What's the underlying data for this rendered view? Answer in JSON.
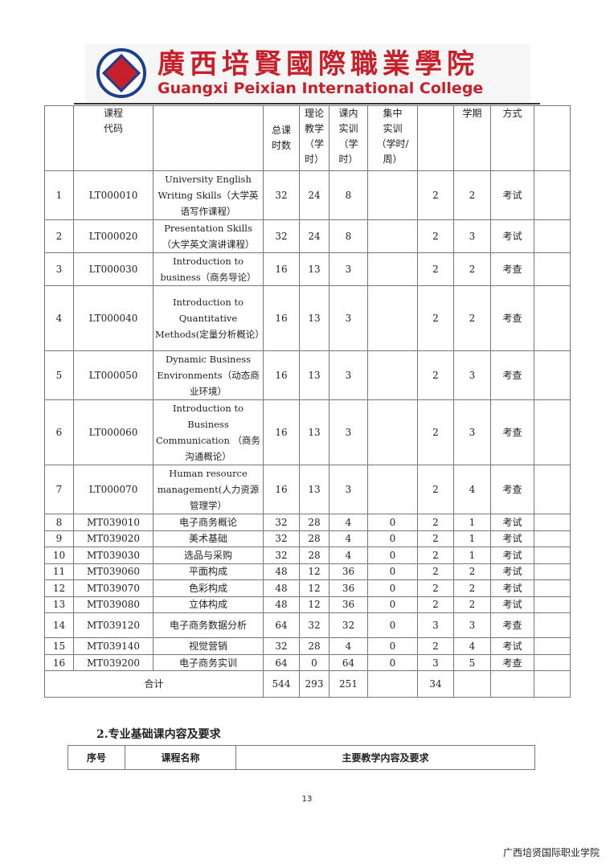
{
  "logo": {
    "cn": "廣西培賢國際職業學院",
    "en": "Guangxi Peixian International College"
  },
  "table": {
    "headers": [
      "",
      "课程\n代码",
      "",
      "总课\n时数",
      "理论\n教学\n（学\n时）",
      "课内\n实训\n（学\n时）",
      "集中\n实训\n（学时/\n周）",
      "",
      "学期",
      "方式",
      ""
    ],
    "rows": [
      [
        "1",
        "LT000010",
        "University English Writing Skills（大学英语写作课程）",
        "32",
        "24",
        "8",
        "",
        "2",
        "2",
        "考试",
        ""
      ],
      [
        "2",
        "LT000020",
        "Presentation Skills（大学英文演讲课程）",
        "32",
        "24",
        "8",
        "",
        "2",
        "3",
        "考试",
        ""
      ],
      [
        "3",
        "LT000030",
        "Introduction to business（商务导论）",
        "16",
        "13",
        "3",
        "",
        "2",
        "2",
        "考查",
        ""
      ],
      [
        "4",
        "LT000040",
        "Introduction to Quantitative Methods(定量分析概论）",
        "16",
        "13",
        "3",
        "",
        "2",
        "2",
        "考查",
        ""
      ],
      [
        "5",
        "LT000050",
        "Dynamic Business Environments（动态商业环境）",
        "16",
        "13",
        "3",
        "",
        "2",
        "3",
        "考查",
        ""
      ],
      [
        "6",
        "LT000060",
        "Introduction to Business Communication （商务沟通概论）",
        "16",
        "13",
        "3",
        "",
        "2",
        "3",
        "考查",
        ""
      ],
      [
        "7",
        "LT000070",
        "Human resource management(人力资源管理学）",
        "16",
        "13",
        "3",
        "",
        "2",
        "4",
        "考查",
        ""
      ],
      [
        "8",
        "MT039010",
        "电子商务概论",
        "32",
        "28",
        "4",
        "0",
        "2",
        "1",
        "考试",
        ""
      ],
      [
        "9",
        "MT039020",
        "美术基础",
        "32",
        "28",
        "4",
        "0",
        "2",
        "1",
        "考试",
        ""
      ],
      [
        "10",
        "MT039030",
        "选品与采购",
        "32",
        "28",
        "4",
        "0",
        "2",
        "1",
        "考试",
        ""
      ],
      [
        "11",
        "MT039060",
        "平面构成",
        "48",
        "12",
        "36",
        "0",
        "2",
        "2",
        "考试",
        ""
      ],
      [
        "12",
        "MT039070",
        "色彩构成",
        "48",
        "12",
        "36",
        "0",
        "2",
        "2",
        "考试",
        ""
      ],
      [
        "13",
        "MT039080",
        "立体构成",
        "48",
        "12",
        "36",
        "0",
        "2",
        "2",
        "考试",
        ""
      ],
      [
        "14",
        "MT039120",
        "电子商务数据分析",
        "64",
        "32",
        "32",
        "0",
        "3",
        "3",
        "考查",
        ""
      ],
      [
        "15",
        "MT039140",
        "视觉营销",
        "32",
        "28",
        "4",
        "0",
        "2",
        "4",
        "考试",
        ""
      ],
      [
        "16",
        "MT039200",
        "电子商务实训",
        "64",
        "0",
        "64",
        "0",
        "3",
        "5",
        "考查",
        ""
      ]
    ],
    "total": {
      "label": "合计",
      "values": [
        "544",
        "293",
        "251",
        "",
        "34",
        "",
        "",
        ""
      ]
    }
  },
  "section_title": "2.专业基础课内容及要求",
  "table2": {
    "headers": [
      "序号",
      "课程名称",
      "主要教学内容及要求"
    ]
  },
  "page_number": "13",
  "footer": "广西培贤国际职业学院"
}
